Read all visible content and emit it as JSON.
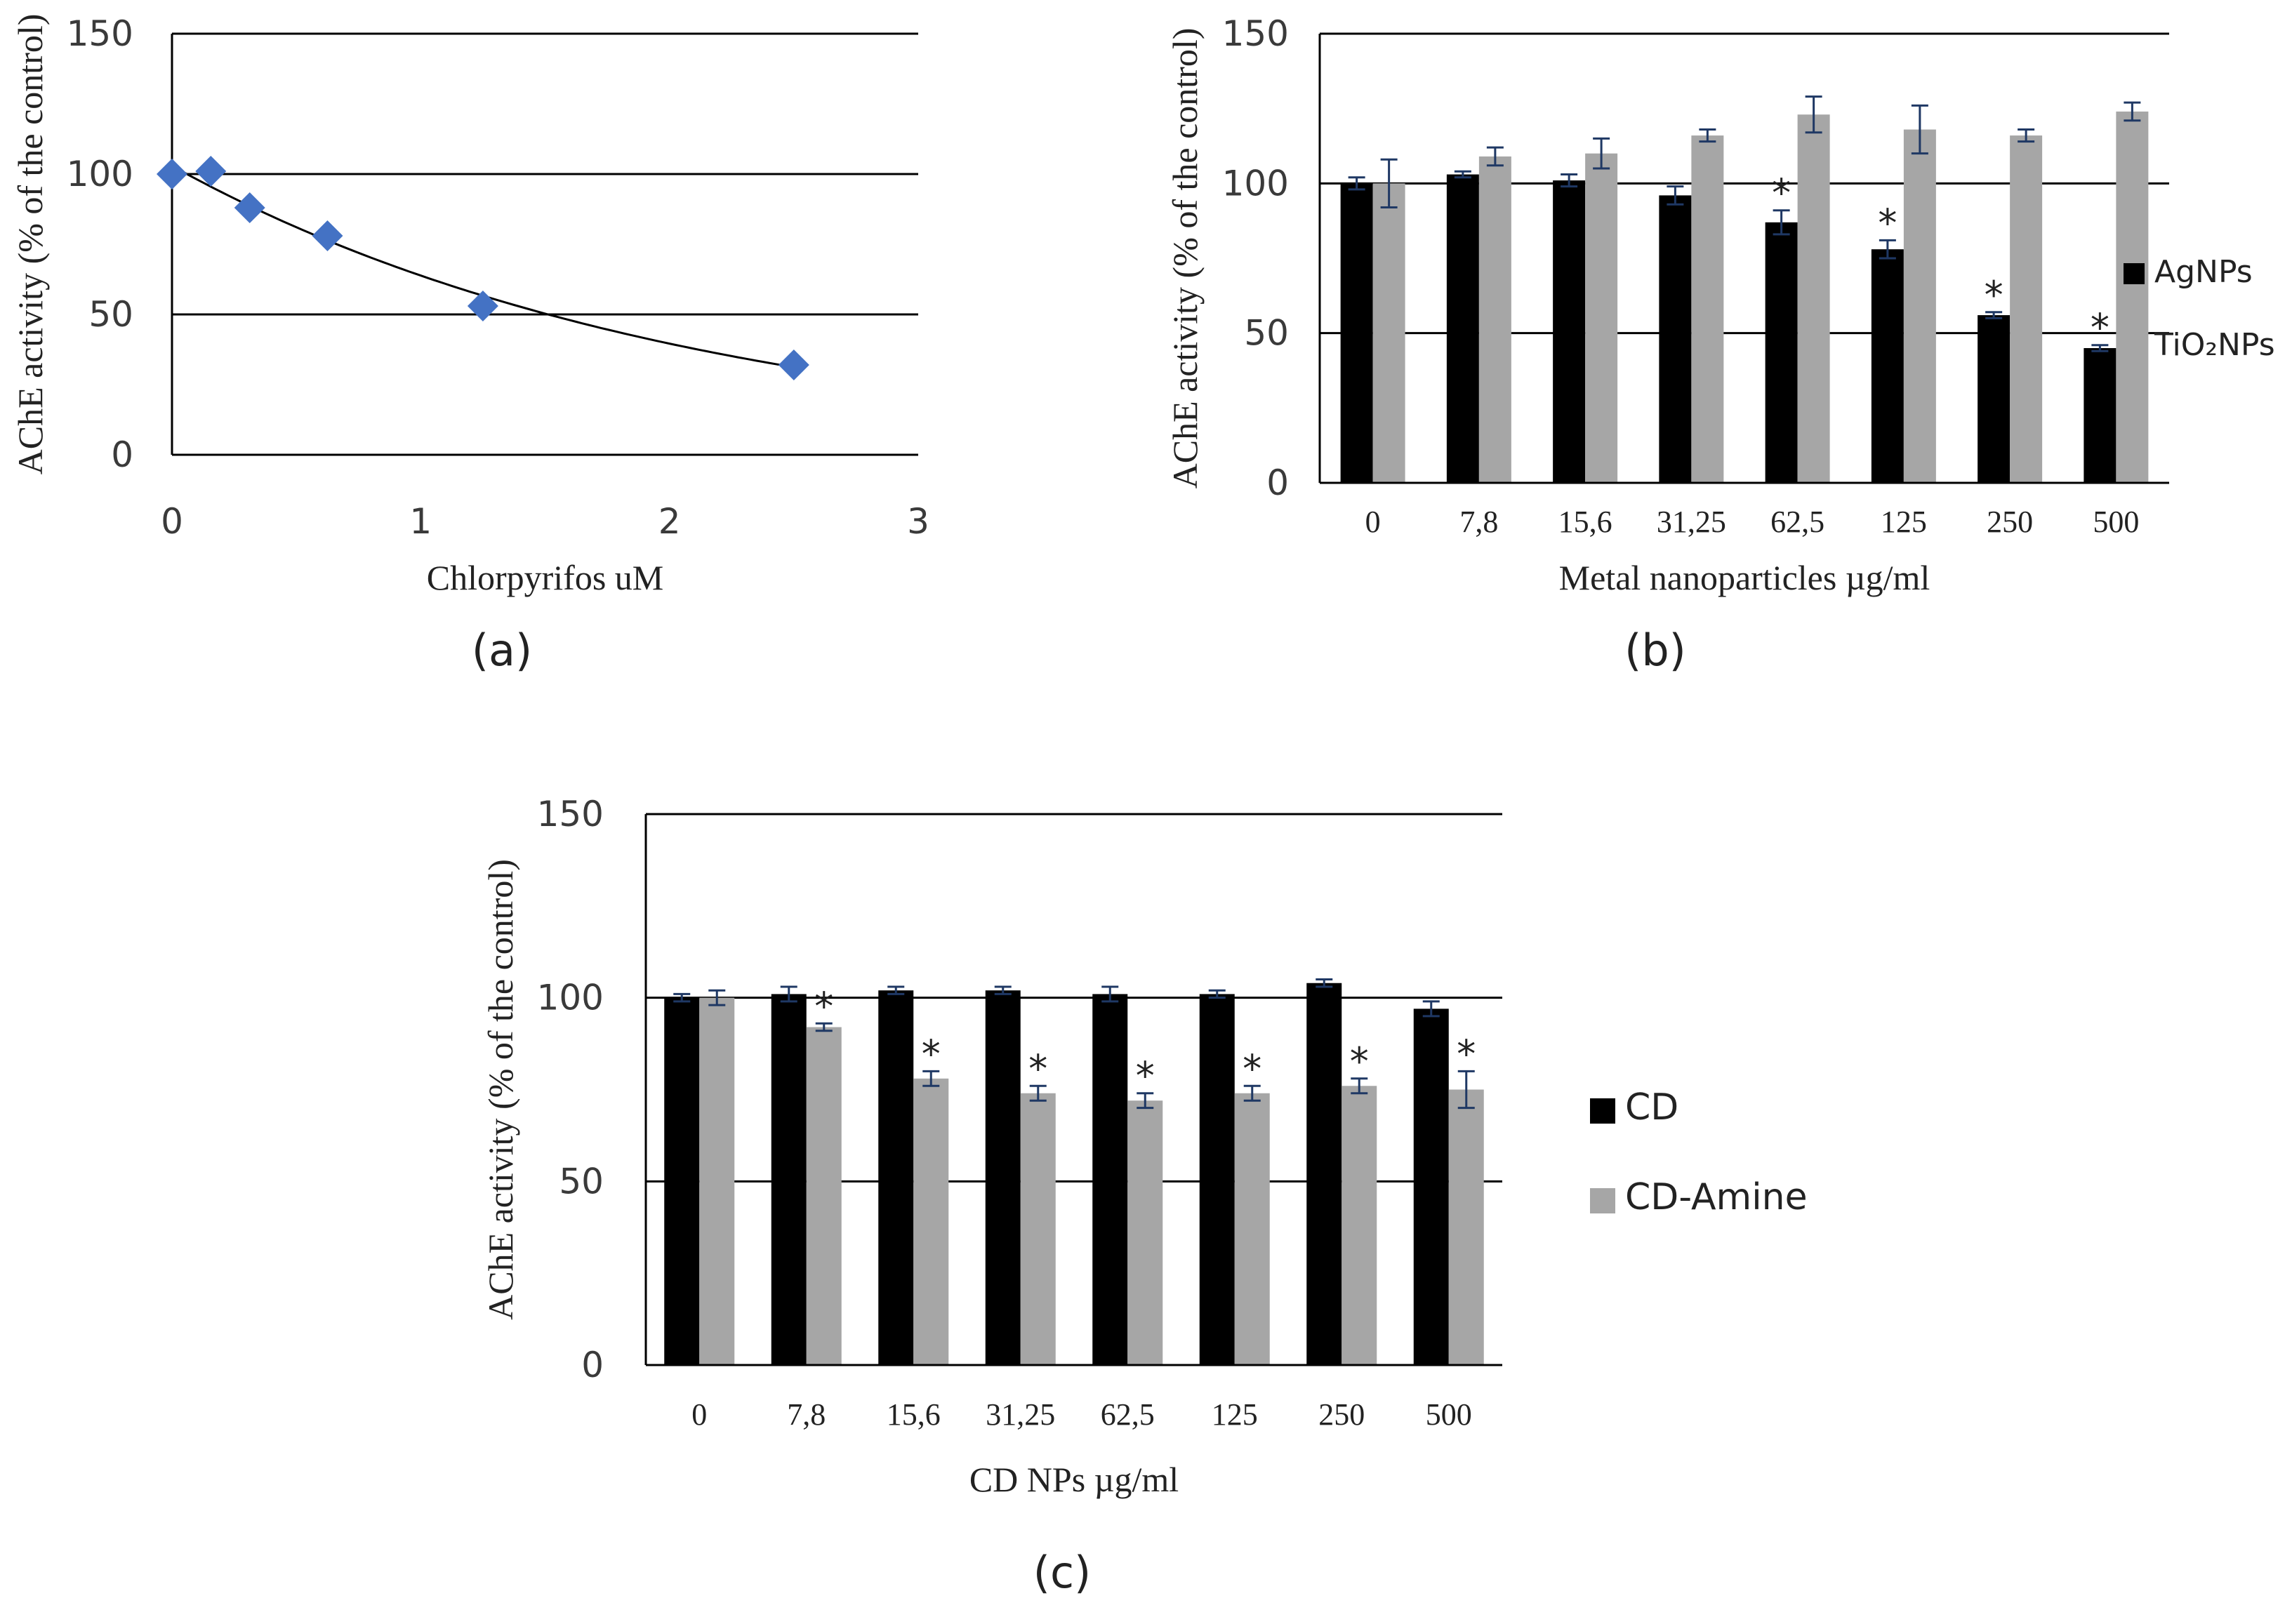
{
  "chart_data": [
    {
      "id": "a",
      "type": "scatter",
      "panel_label": "(a)",
      "title": "",
      "xlabel": "Chlorpyrifos uM",
      "ylabel": "AChE activity (% of the control)",
      "xlim": [
        0,
        3
      ],
      "ylim": [
        0,
        150
      ],
      "xticks": [
        "0",
        "1",
        "2",
        "3"
      ],
      "yticks": [
        "0",
        "50",
        "100",
        "150"
      ],
      "grid": "horizontal",
      "marker_color": "#4472C4",
      "points": [
        {
          "x": 0,
          "y": 100
        },
        {
          "x": 0.156,
          "y": 101
        },
        {
          "x": 0.3125,
          "y": 88
        },
        {
          "x": 0.625,
          "y": 78
        },
        {
          "x": 1.25,
          "y": 53
        },
        {
          "x": 2.5,
          "y": 32
        }
      ],
      "trendline": "exponential"
    },
    {
      "id": "b",
      "type": "bar",
      "panel_label": "(b)",
      "title": "",
      "xlabel": "Metal nanoparticles µg/ml",
      "ylabel": "AChE activity (% of the control)",
      "ylim": [
        0,
        150
      ],
      "yticks": [
        "0",
        "50",
        "100",
        "150"
      ],
      "grid": "horizontal",
      "legend_position": "right",
      "categories": [
        "0",
        "7,8",
        "15,6",
        "31,25",
        "62,5",
        "125",
        "250",
        "500"
      ],
      "series": [
        {
          "name": "AgNPs",
          "color": "#000000",
          "values": [
            100,
            103,
            101,
            96,
            87,
            78,
            56,
            45
          ],
          "errors": [
            2,
            1,
            2,
            3,
            4,
            3,
            1,
            1
          ],
          "significant": [
            false,
            false,
            false,
            false,
            true,
            true,
            true,
            true
          ]
        },
        {
          "name": "TiO₂NPs",
          "color": "#A6A6A6",
          "values": [
            100,
            109,
            110,
            116,
            123,
            118,
            116,
            124
          ],
          "errors": [
            8,
            3,
            5,
            2,
            6,
            8,
            2,
            3
          ],
          "significant": [
            false,
            false,
            false,
            false,
            false,
            false,
            false,
            false
          ]
        }
      ],
      "significance_marker": "*"
    },
    {
      "id": "c",
      "type": "bar",
      "panel_label": "(c)",
      "title": "",
      "xlabel": "CD NPs µg/ml",
      "ylabel": "AChE activity (% of the control)",
      "ylim": [
        0,
        150
      ],
      "yticks": [
        "0",
        "50",
        "100",
        "150"
      ],
      "grid": "horizontal",
      "legend_position": "right",
      "categories": [
        "0",
        "7,8",
        "15,6",
        "31,25",
        "62,5",
        "125",
        "250",
        "500"
      ],
      "series": [
        {
          "name": "CD",
          "color": "#000000",
          "values": [
            100,
            101,
            102,
            102,
            101,
            101,
            104,
            97
          ],
          "errors": [
            1,
            2,
            1,
            1,
            2,
            1,
            1,
            2
          ],
          "significant": [
            false,
            false,
            false,
            false,
            false,
            false,
            false,
            false
          ]
        },
        {
          "name": "CD-Amine",
          "color": "#A6A6A6",
          "values": [
            100,
            92,
            78,
            74,
            72,
            74,
            76,
            75
          ],
          "errors": [
            2,
            1,
            2,
            2,
            2,
            2,
            2,
            5
          ],
          "significant": [
            false,
            true,
            true,
            true,
            true,
            true,
            true,
            true
          ]
        }
      ],
      "significance_marker": "*"
    }
  ]
}
